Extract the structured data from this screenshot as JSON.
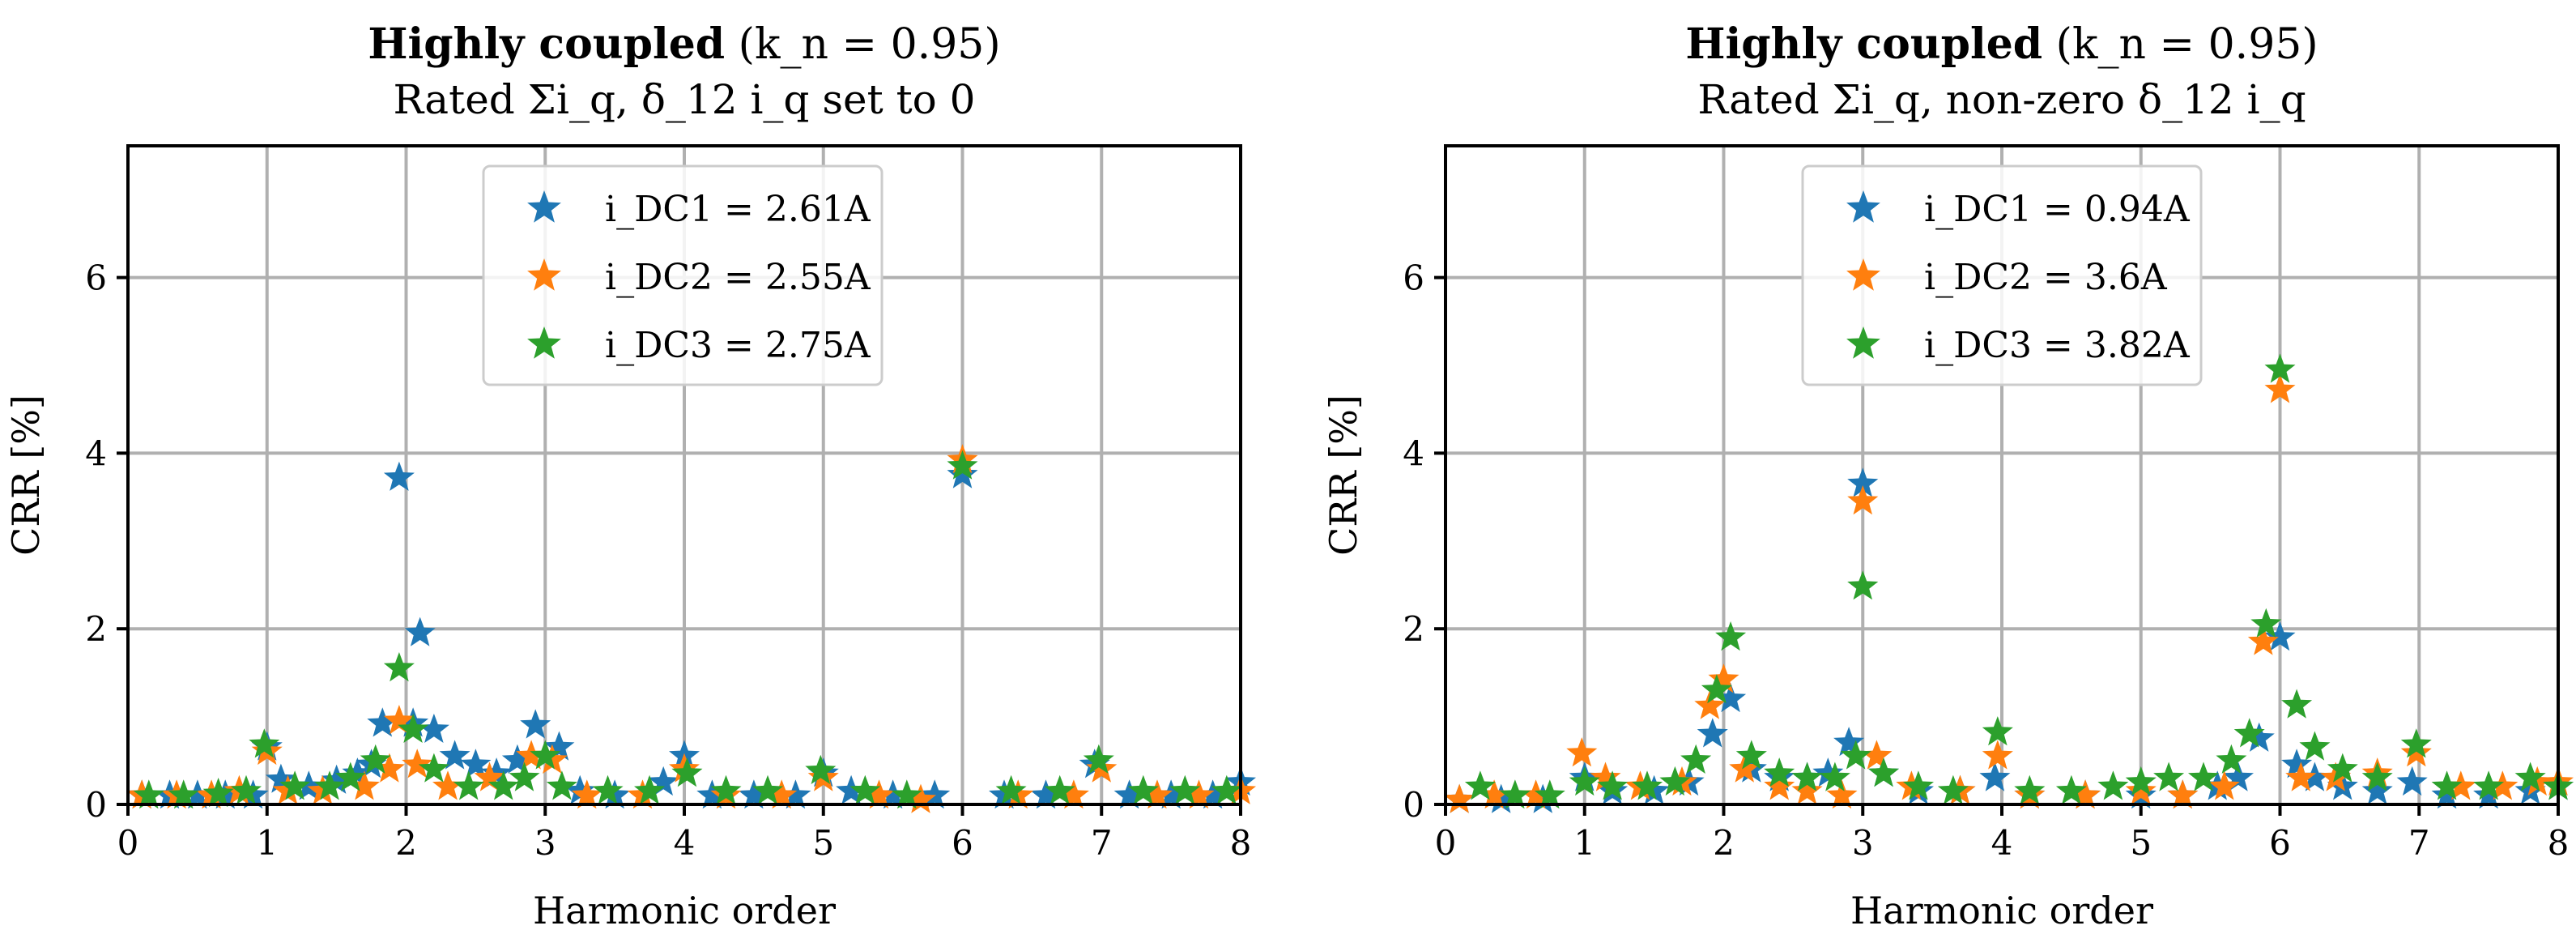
{
  "figure": {
    "panels": [
      {
        "title_bold": "Highly coupled",
        "title_param": "(k_n = 0.95)",
        "subtitle": "Rated Σi_q, δ_12 i_q set to 0",
        "xlabel": "Harmonic order",
        "ylabel": "CRR [%]",
        "legend": [
          {
            "label": "i_DC1 = 2.61A",
            "color": "#1f77b4"
          },
          {
            "label": "i_DC2 = 2.55A",
            "color": "#ff7f0e"
          },
          {
            "label": "i_DC3 = 2.75A",
            "color": "#2ca02c"
          }
        ]
      },
      {
        "title_bold": "Highly coupled",
        "title_param": "(k_n = 0.95)",
        "subtitle": "Rated Σi_q, non-zero δ_12 i_q",
        "xlabel": "Harmonic order",
        "ylabel": "CRR [%]",
        "legend": [
          {
            "label": "i_DC1 = 0.94A",
            "color": "#1f77b4"
          },
          {
            "label": "i_DC2 = 3.6A",
            "color": "#ff7f0e"
          },
          {
            "label": "i_DC3 = 3.82A",
            "color": "#2ca02c"
          }
        ]
      }
    ]
  },
  "chart_data": [
    {
      "type": "scatter",
      "title": "Highly coupled (k_n = 0.95)",
      "subtitle": "Rated Σi_q, δ_12 i_q set to 0",
      "xlabel": "Harmonic order",
      "ylabel": "CRR [%]",
      "xlim": [
        0,
        8
      ],
      "ylim": [
        0,
        7.5
      ],
      "xticks": [
        0,
        1,
        2,
        3,
        4,
        5,
        6,
        7,
        8
      ],
      "yticks": [
        0,
        2,
        4,
        6
      ],
      "grid": true,
      "legend_position": "upper-center",
      "series": [
        {
          "name": "i_DC1 = 2.61A",
          "color": "#1f77b4",
          "points": [
            [
              0.1,
              0.1
            ],
            [
              0.3,
              0.1
            ],
            [
              0.5,
              0.1
            ],
            [
              0.7,
              0.1
            ],
            [
              0.9,
              0.1
            ],
            [
              1.0,
              0.65
            ],
            [
              1.1,
              0.28
            ],
            [
              1.3,
              0.2
            ],
            [
              1.5,
              0.27
            ],
            [
              1.65,
              0.35
            ],
            [
              1.75,
              0.45
            ],
            [
              1.83,
              0.92
            ],
            [
              1.95,
              3.72
            ],
            [
              2.05,
              0.92
            ],
            [
              2.1,
              1.95
            ],
            [
              2.2,
              0.85
            ],
            [
              2.35,
              0.55
            ],
            [
              2.5,
              0.45
            ],
            [
              2.65,
              0.35
            ],
            [
              2.8,
              0.5
            ],
            [
              2.93,
              0.9
            ],
            [
              3.1,
              0.65
            ],
            [
              3.25,
              0.15
            ],
            [
              3.5,
              0.1
            ],
            [
              3.85,
              0.25
            ],
            [
              4.0,
              0.55
            ],
            [
              4.2,
              0.1
            ],
            [
              4.5,
              0.1
            ],
            [
              4.8,
              0.1
            ],
            [
              5.0,
              0.35
            ],
            [
              5.2,
              0.15
            ],
            [
              5.5,
              0.1
            ],
            [
              5.8,
              0.1
            ],
            [
              6.0,
              3.75
            ],
            [
              6.3,
              0.1
            ],
            [
              6.6,
              0.1
            ],
            [
              6.95,
              0.45
            ],
            [
              7.2,
              0.1
            ],
            [
              7.5,
              0.1
            ],
            [
              7.8,
              0.1
            ],
            [
              8.0,
              0.25
            ]
          ]
        },
        {
          "name": "i_DC2 = 2.55A",
          "color": "#ff7f0e",
          "points": [
            [
              0.1,
              0.1
            ],
            [
              0.35,
              0.1
            ],
            [
              0.6,
              0.1
            ],
            [
              0.8,
              0.15
            ],
            [
              1.0,
              0.6
            ],
            [
              1.15,
              0.15
            ],
            [
              1.4,
              0.15
            ],
            [
              1.7,
              0.2
            ],
            [
              1.88,
              0.4
            ],
            [
              1.95,
              0.95
            ],
            [
              2.08,
              0.45
            ],
            [
              2.3,
              0.2
            ],
            [
              2.6,
              0.3
            ],
            [
              2.9,
              0.55
            ],
            [
              3.05,
              0.5
            ],
            [
              3.3,
              0.1
            ],
            [
              3.7,
              0.1
            ],
            [
              4.0,
              0.4
            ],
            [
              4.3,
              0.1
            ],
            [
              4.7,
              0.1
            ],
            [
              5.0,
              0.3
            ],
            [
              5.4,
              0.1
            ],
            [
              5.7,
              0.05
            ],
            [
              6.0,
              3.92
            ],
            [
              6.4,
              0.1
            ],
            [
              6.8,
              0.1
            ],
            [
              7.0,
              0.4
            ],
            [
              7.4,
              0.1
            ],
            [
              7.7,
              0.1
            ],
            [
              8.0,
              0.15
            ]
          ]
        },
        {
          "name": "i_DC3 = 2.75A",
          "color": "#2ca02c",
          "points": [
            [
              0.15,
              0.1
            ],
            [
              0.4,
              0.1
            ],
            [
              0.65,
              0.12
            ],
            [
              0.85,
              0.15
            ],
            [
              0.98,
              0.68
            ],
            [
              1.2,
              0.2
            ],
            [
              1.45,
              0.2
            ],
            [
              1.6,
              0.3
            ],
            [
              1.78,
              0.5
            ],
            [
              1.95,
              1.55
            ],
            [
              2.05,
              0.85
            ],
            [
              2.2,
              0.4
            ],
            [
              2.45,
              0.2
            ],
            [
              2.7,
              0.2
            ],
            [
              2.85,
              0.3
            ],
            [
              3.0,
              0.55
            ],
            [
              3.12,
              0.2
            ],
            [
              3.45,
              0.15
            ],
            [
              3.75,
              0.15
            ],
            [
              4.02,
              0.35
            ],
            [
              4.3,
              0.15
            ],
            [
              4.6,
              0.15
            ],
            [
              4.98,
              0.38
            ],
            [
              5.3,
              0.15
            ],
            [
              5.6,
              0.1
            ],
            [
              6.0,
              3.85
            ],
            [
              6.35,
              0.15
            ],
            [
              6.7,
              0.15
            ],
            [
              6.98,
              0.5
            ],
            [
              7.3,
              0.15
            ],
            [
              7.6,
              0.15
            ],
            [
              7.9,
              0.15
            ]
          ]
        }
      ]
    },
    {
      "type": "scatter",
      "title": "Highly coupled (k_n = 0.95)",
      "subtitle": "Rated Σi_q, non-zero δ_12 i_q",
      "xlabel": "Harmonic order",
      "ylabel": "CRR [%]",
      "xlim": [
        0,
        8
      ],
      "ylim": [
        0,
        7.5
      ],
      "xticks": [
        0,
        1,
        2,
        3,
        4,
        5,
        6,
        7,
        8
      ],
      "yticks": [
        0,
        2,
        4,
        6
      ],
      "grid": true,
      "legend_position": "upper-center",
      "series": [
        {
          "name": "i_DC1 = 0.94A",
          "color": "#1f77b4",
          "points": [
            [
              0.1,
              0.05
            ],
            [
              0.4,
              0.05
            ],
            [
              0.7,
              0.05
            ],
            [
              1.0,
              0.3
            ],
            [
              1.2,
              0.15
            ],
            [
              1.5,
              0.15
            ],
            [
              1.75,
              0.25
            ],
            [
              1.92,
              0.8
            ],
            [
              2.05,
              1.2
            ],
            [
              2.2,
              0.4
            ],
            [
              2.4,
              0.3
            ],
            [
              2.6,
              0.3
            ],
            [
              2.75,
              0.35
            ],
            [
              2.9,
              0.7
            ],
            [
              3.0,
              3.65
            ],
            [
              3.15,
              0.35
            ],
            [
              3.4,
              0.15
            ],
            [
              3.7,
              0.15
            ],
            [
              3.95,
              0.3
            ],
            [
              4.2,
              0.1
            ],
            [
              4.6,
              0.1
            ],
            [
              5.0,
              0.1
            ],
            [
              5.3,
              0.1
            ],
            [
              5.55,
              0.2
            ],
            [
              5.7,
              0.3
            ],
            [
              5.85,
              0.75
            ],
            [
              6.0,
              1.9
            ],
            [
              6.12,
              0.45
            ],
            [
              6.25,
              0.3
            ],
            [
              6.45,
              0.2
            ],
            [
              6.7,
              0.15
            ],
            [
              6.95,
              0.25
            ],
            [
              7.2,
              0.1
            ],
            [
              7.5,
              0.1
            ],
            [
              7.8,
              0.15
            ],
            [
              8.0,
              0.2
            ]
          ]
        },
        {
          "name": "i_DC2 = 3.6A",
          "color": "#ff7f0e",
          "points": [
            [
              0.1,
              0.05
            ],
            [
              0.35,
              0.1
            ],
            [
              0.65,
              0.1
            ],
            [
              0.98,
              0.58
            ],
            [
              1.15,
              0.3
            ],
            [
              1.4,
              0.2
            ],
            [
              1.7,
              0.25
            ],
            [
              1.9,
              1.12
            ],
            [
              2.0,
              1.42
            ],
            [
              2.15,
              0.4
            ],
            [
              2.4,
              0.2
            ],
            [
              2.6,
              0.15
            ],
            [
              2.85,
              0.1
            ],
            [
              3.0,
              3.45
            ],
            [
              3.1,
              0.55
            ],
            [
              3.35,
              0.2
            ],
            [
              3.7,
              0.15
            ],
            [
              3.97,
              0.55
            ],
            [
              4.2,
              0.1
            ],
            [
              4.6,
              0.1
            ],
            [
              5.0,
              0.15
            ],
            [
              5.3,
              0.1
            ],
            [
              5.6,
              0.2
            ],
            [
              5.88,
              1.85
            ],
            [
              6.0,
              4.72
            ],
            [
              6.15,
              0.3
            ],
            [
              6.4,
              0.3
            ],
            [
              6.7,
              0.35
            ],
            [
              6.98,
              0.58
            ],
            [
              7.3,
              0.2
            ],
            [
              7.6,
              0.2
            ],
            [
              7.85,
              0.25
            ],
            [
              8.0,
              0.25
            ]
          ]
        },
        {
          "name": "i_DC3 = 3.82A",
          "color": "#2ca02c",
          "points": [
            [
              0.25,
              0.2
            ],
            [
              0.5,
              0.1
            ],
            [
              0.75,
              0.1
            ],
            [
              1.0,
              0.25
            ],
            [
              1.2,
              0.2
            ],
            [
              1.45,
              0.2
            ],
            [
              1.65,
              0.25
            ],
            [
              1.8,
              0.5
            ],
            [
              1.95,
              1.3
            ],
            [
              2.05,
              1.9
            ],
            [
              2.2,
              0.55
            ],
            [
              2.4,
              0.35
            ],
            [
              2.6,
              0.3
            ],
            [
              2.8,
              0.3
            ],
            [
              2.95,
              0.55
            ],
            [
              3.0,
              2.48
            ],
            [
              3.15,
              0.35
            ],
            [
              3.4,
              0.2
            ],
            [
              3.65,
              0.15
            ],
            [
              3.97,
              0.82
            ],
            [
              4.2,
              0.15
            ],
            [
              4.5,
              0.15
            ],
            [
              4.8,
              0.2
            ],
            [
              5.0,
              0.25
            ],
            [
              5.2,
              0.3
            ],
            [
              5.45,
              0.3
            ],
            [
              5.65,
              0.5
            ],
            [
              5.78,
              0.8
            ],
            [
              5.9,
              2.05
            ],
            [
              6.0,
              4.95
            ],
            [
              6.12,
              1.13
            ],
            [
              6.25,
              0.65
            ],
            [
              6.45,
              0.4
            ],
            [
              6.7,
              0.3
            ],
            [
              6.98,
              0.68
            ],
            [
              7.2,
              0.2
            ],
            [
              7.5,
              0.2
            ],
            [
              7.8,
              0.3
            ],
            [
              8.0,
              0.2
            ]
          ]
        }
      ]
    }
  ]
}
